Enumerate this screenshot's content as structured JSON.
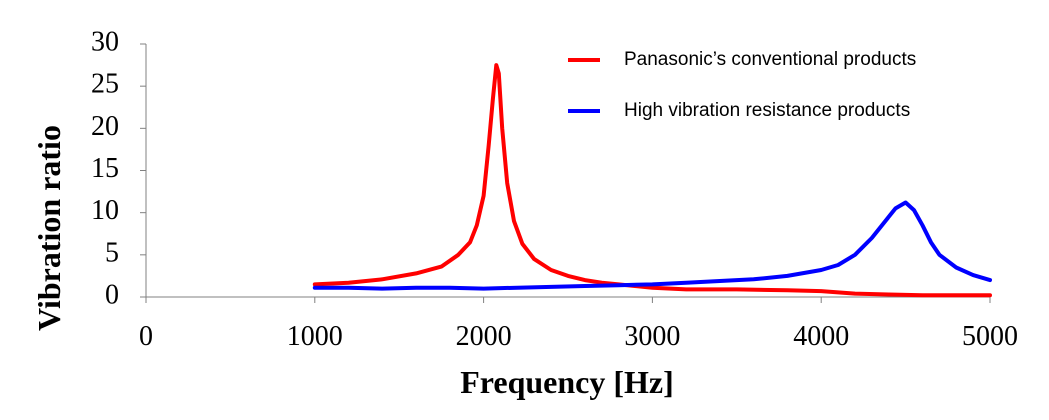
{
  "chart_data": {
    "type": "line",
    "xlabel": "Frequency [Hz]",
    "ylabel": "Vibration ratio",
    "xlim": [
      0,
      5000
    ],
    "ylim": [
      0,
      30
    ],
    "xticks": [
      0,
      1000,
      2000,
      3000,
      4000,
      5000
    ],
    "yticks": [
      0,
      5,
      10,
      15,
      20,
      25,
      30
    ],
    "grid": false,
    "legend_position": "top-right",
    "series": [
      {
        "name": "Panasonic’s conventional products",
        "color": "#ff0000",
        "x": [
          1000,
          1200,
          1400,
          1600,
          1750,
          1850,
          1920,
          1960,
          2000,
          2030,
          2055,
          2075,
          2090,
          2110,
          2140,
          2180,
          2230,
          2300,
          2400,
          2500,
          2600,
          2700,
          2800,
          3000,
          3200,
          3500,
          3800,
          4000,
          4200,
          4400,
          4600,
          4800,
          5000
        ],
        "y": [
          1.5,
          1.7,
          2.1,
          2.8,
          3.6,
          5.0,
          6.5,
          8.5,
          12.0,
          18.0,
          23.5,
          27.5,
          26.5,
          20.0,
          13.5,
          9.0,
          6.3,
          4.5,
          3.2,
          2.5,
          2.0,
          1.7,
          1.5,
          1.1,
          0.9,
          0.9,
          0.8,
          0.7,
          0.4,
          0.3,
          0.2,
          0.2,
          0.2
        ]
      },
      {
        "name": "High vibration resistance products",
        "color": "#0000ff",
        "x": [
          1000,
          1200,
          1400,
          1600,
          1800,
          2000,
          2200,
          2400,
          2600,
          2800,
          3000,
          3200,
          3400,
          3600,
          3800,
          4000,
          4100,
          4200,
          4300,
          4380,
          4440,
          4500,
          4550,
          4600,
          4650,
          4700,
          4800,
          4900,
          5000
        ],
        "y": [
          1.1,
          1.1,
          1.0,
          1.1,
          1.1,
          1.0,
          1.1,
          1.2,
          1.3,
          1.4,
          1.5,
          1.7,
          1.9,
          2.1,
          2.5,
          3.2,
          3.8,
          5.0,
          7.0,
          9.0,
          10.5,
          11.2,
          10.3,
          8.5,
          6.5,
          5.0,
          3.5,
          2.6,
          2.0
        ]
      }
    ]
  }
}
